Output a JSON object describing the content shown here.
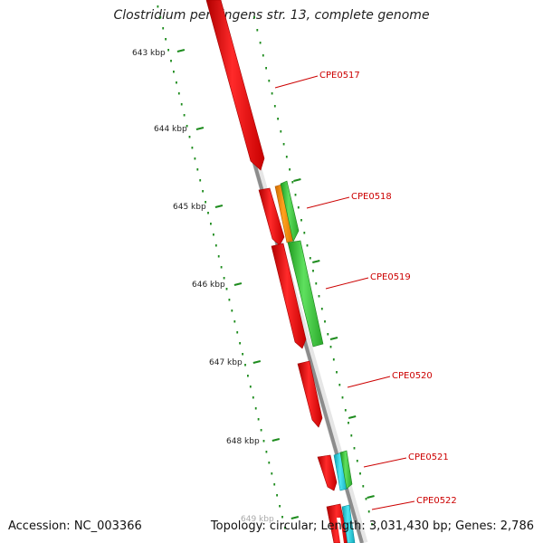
{
  "title": "Clostridium perfringens str. 13, complete genome",
  "footer": {
    "accession": "Accession: NC_003366",
    "summary": "Topology: circular; Length: 3,031,430 bp; Genes: 2,786"
  },
  "scale_labels": [
    "643 kbp",
    "644 kbp",
    "645 kbp",
    "646 kbp",
    "647 kbp",
    "648 kbp",
    "649 kbp"
  ],
  "genes": [
    "CPE0517",
    "CPE0518",
    "CPE0519",
    "CPE0520",
    "CPE0521",
    "CPE0522"
  ],
  "colors": {
    "forward_strand": "#e8000b",
    "reverse_strand_green": "#3cc43c",
    "reverse_strand_orange": "#f08c00",
    "reverse_strand_cyan": "#20c8d8",
    "backbone": "#8c8c8c",
    "ticks": "#1e8c1e",
    "gene_label": "#cc0000"
  }
}
